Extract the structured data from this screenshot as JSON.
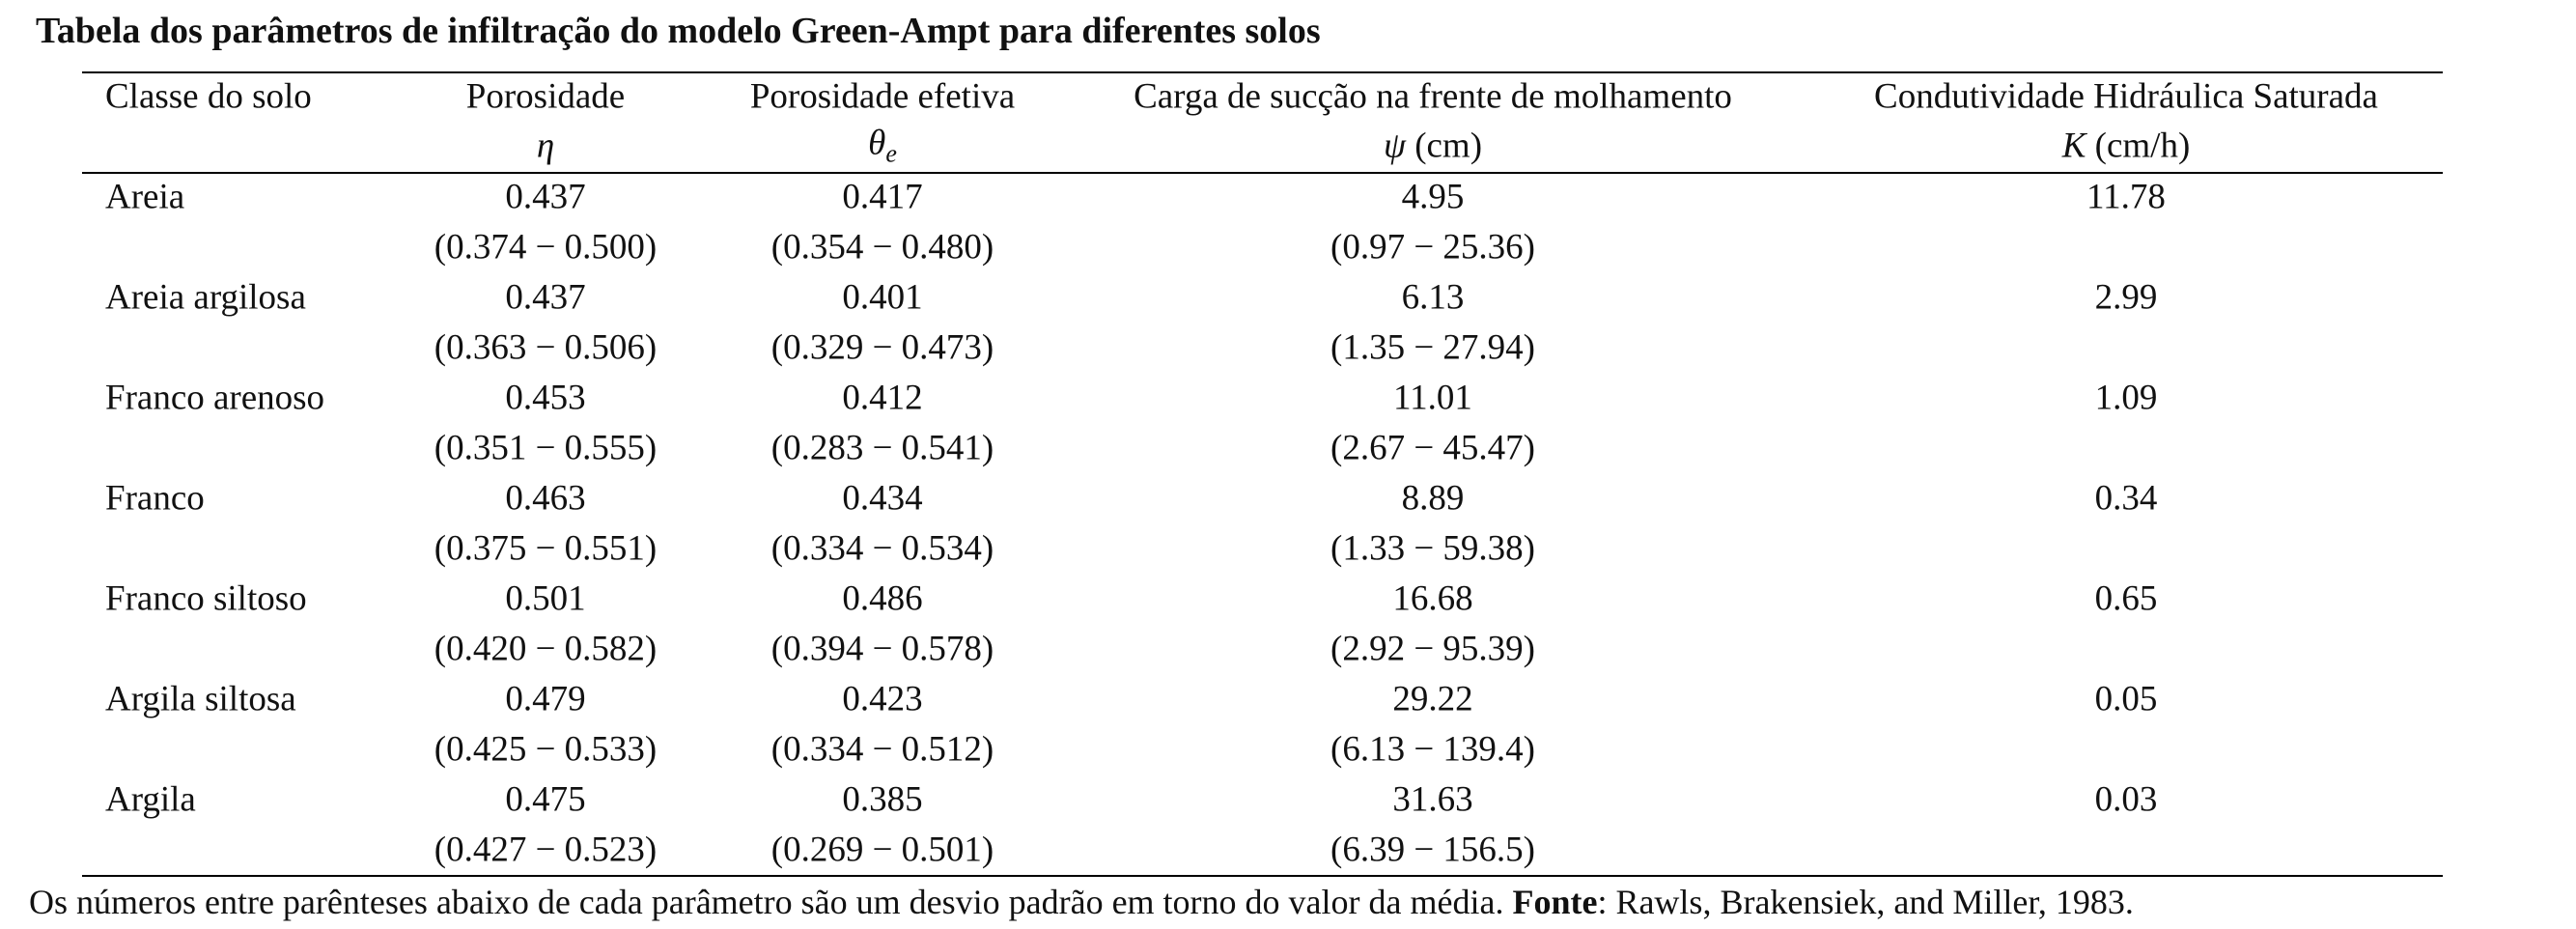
{
  "title": "Tabela dos parâmetros de infiltração do modelo Green-Ampt para diferentes solos",
  "table": {
    "columns": [
      {
        "label": "Classe do solo"
      },
      {
        "label": "Porosidade",
        "symbol": "η"
      },
      {
        "label": "Porosidade efetiva",
        "symbol": "θ",
        "sub": "e"
      },
      {
        "label": "Carga de sucção na frente de molhamento",
        "symbol": "ψ",
        "unit": "(cm)"
      },
      {
        "label": "Condutividade Hidráulica Saturada",
        "symbol": "K",
        "unit": "(cm/h)"
      }
    ],
    "rows": [
      {
        "class": "Areia",
        "values": [
          "0.437",
          "0.417",
          "4.95",
          "11.78"
        ],
        "ranges": [
          "(0.374 − 0.500)",
          "(0.354 − 0.480)",
          "(0.97 − 25.36)"
        ]
      },
      {
        "class": "Areia argilosa",
        "values": [
          "0.437",
          "0.401",
          "6.13",
          "2.99"
        ],
        "ranges": [
          "(0.363 − 0.506)",
          "(0.329 − 0.473)",
          "(1.35 − 27.94)"
        ]
      },
      {
        "class": "Franco arenoso",
        "values": [
          "0.453",
          "0.412",
          "11.01",
          "1.09"
        ],
        "ranges": [
          "(0.351 − 0.555)",
          "(0.283 − 0.541)",
          "(2.67 − 45.47)"
        ]
      },
      {
        "class": "Franco",
        "values": [
          "0.463",
          "0.434",
          "8.89",
          "0.34"
        ],
        "ranges": [
          "(0.375 − 0.551)",
          "(0.334 − 0.534)",
          "(1.33 − 59.38)"
        ]
      },
      {
        "class": "Franco siltoso",
        "values": [
          "0.501",
          "0.486",
          "16.68",
          "0.65"
        ],
        "ranges": [
          "(0.420 − 0.582)",
          "(0.394 − 0.578)",
          "(2.92 − 95.39)"
        ]
      },
      {
        "class": "Argila siltosa",
        "values": [
          "0.479",
          "0.423",
          "29.22",
          "0.05"
        ],
        "ranges": [
          "(0.425 − 0.533)",
          "(0.334 − 0.512)",
          "(6.13 − 139.4)"
        ]
      },
      {
        "class": "Argila",
        "values": [
          "0.475",
          "0.385",
          "31.63",
          "0.03"
        ],
        "ranges": [
          "(0.427 − 0.523)",
          "(0.269 − 0.501)",
          "(6.39 − 156.5)"
        ]
      }
    ]
  },
  "footnote": {
    "text": "Os números entre parênteses abaixo de cada parâmetro são um desvio padrão em torno do valor da média. ",
    "source_label": "Fonte",
    "source_text": ": Rawls, Brakensiek, and Miller, 1983."
  }
}
